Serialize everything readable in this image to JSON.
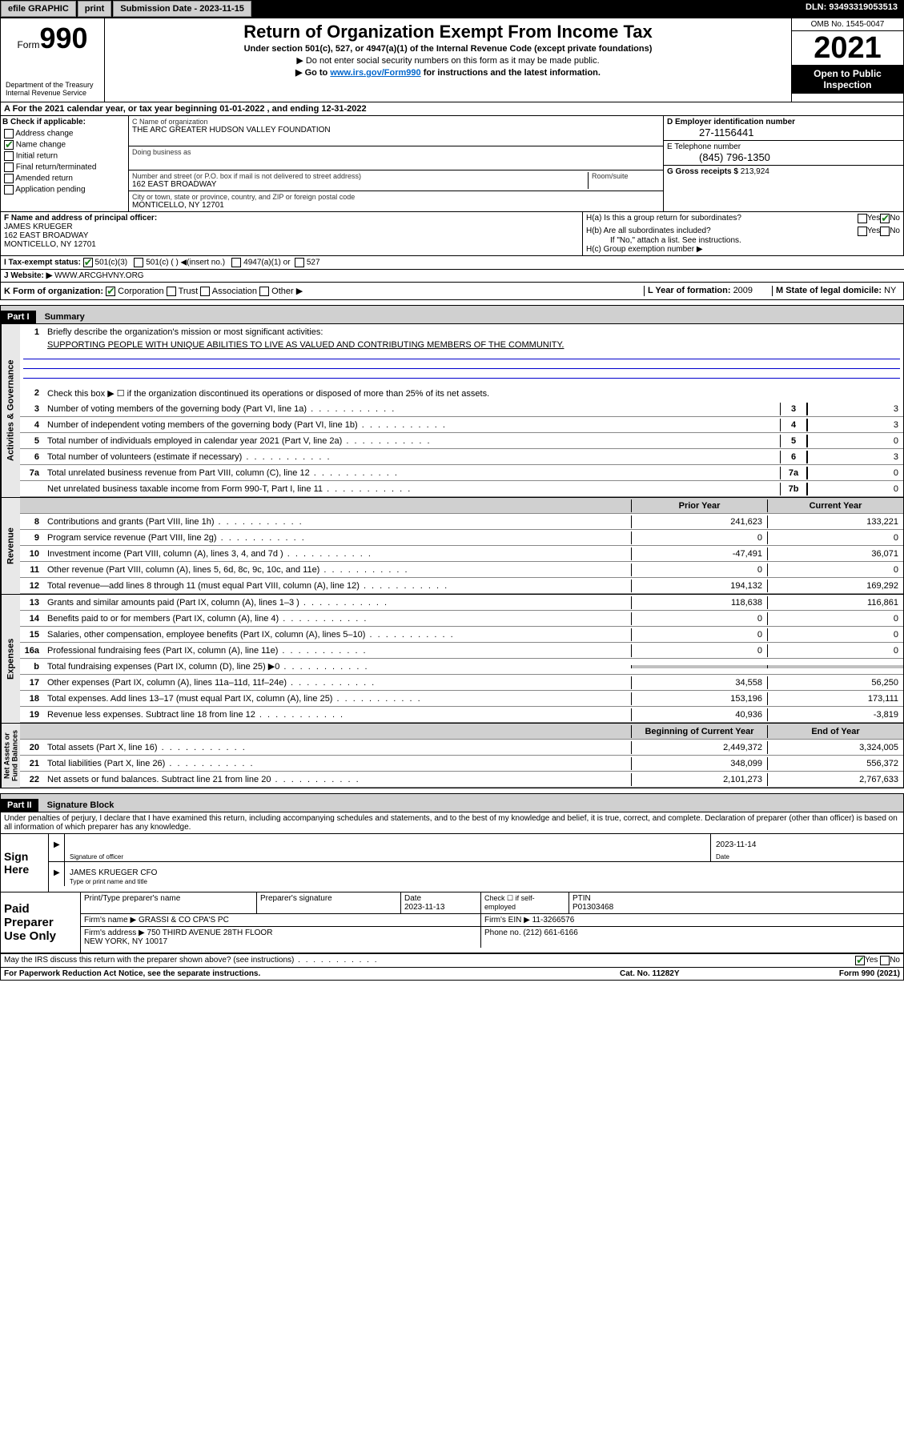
{
  "topbar": {
    "efile": "efile GRAPHIC",
    "print": "print",
    "subdate_label": "Submission Date - 2023-11-15",
    "dln_label": "DLN: 93493319053513"
  },
  "header": {
    "form_prefix": "Form",
    "form_number": "990",
    "dept": "Department of the Treasury\nInternal Revenue Service",
    "title": "Return of Organization Exempt From Income Tax",
    "sub1": "Under section 501(c), 527, or 4947(a)(1) of the Internal Revenue Code (except private foundations)",
    "sub2": "▶ Do not enter social security numbers on this form as it may be made public.",
    "sub3_pre": "▶ Go to ",
    "sub3_link": "www.irs.gov/Form990",
    "sub3_post": " for instructions and the latest information.",
    "omb": "OMB No. 1545-0047",
    "year": "2021",
    "open_public": "Open to Public\nInspection"
  },
  "section_a": {
    "text": "A For the 2021 calendar year, or tax year beginning 01-01-2022    , and ending 12-31-2022"
  },
  "block_b": {
    "hdr": "B Check if applicable:",
    "items": [
      "Address change",
      "Name change",
      "Initial return",
      "Final return/terminated",
      "Amended return",
      "Application pending"
    ],
    "checked_idx": 1
  },
  "block_c": {
    "name_lbl": "C Name of organization",
    "name": "THE ARC GREATER HUDSON VALLEY FOUNDATION",
    "dba_lbl": "Doing business as",
    "dba": "",
    "addr_lbl": "Number and street (or P.O. box if mail is not delivered to street address)",
    "room_lbl": "Room/suite",
    "addr": "162 EAST BROADWAY",
    "city_lbl": "City or town, state or province, country, and ZIP or foreign postal code",
    "city": "MONTICELLO, NY  12701"
  },
  "block_d": {
    "lbl": "D Employer identification number",
    "val": "27-1156441"
  },
  "block_e": {
    "lbl": "E Telephone number",
    "val": "(845) 796-1350"
  },
  "block_g": {
    "lbl": "G Gross receipts $ ",
    "val": "213,924"
  },
  "block_f": {
    "lbl": "F  Name and address of principal officer:",
    "name": "JAMES KRUEGER",
    "addr": "162 EAST BROADWAY\nMONTICELLO, NY  12701"
  },
  "block_h": {
    "a_lbl": "H(a)  Is this a group return for subordinates?",
    "a_yes": "Yes",
    "a_no": "No",
    "b_lbl": "H(b)  Are all subordinates included?",
    "b_note": "If \"No,\" attach a list. See instructions.",
    "c_lbl": "H(c)  Group exemption number ▶"
  },
  "block_i": {
    "lbl": "I   Tax-exempt status:",
    "opts": [
      "501(c)(3)",
      "501(c) (  ) ◀(insert no.)",
      "4947(a)(1) or",
      "527"
    ]
  },
  "block_j": {
    "lbl": "J   Website: ▶",
    "val": "WWW.ARCGHVNY.ORG"
  },
  "block_k": {
    "lbl": "K Form of organization:",
    "opts": [
      "Corporation",
      "Trust",
      "Association",
      "Other ▶"
    ]
  },
  "block_l": {
    "lbl": "L Year of formation: ",
    "val": "2009"
  },
  "block_m": {
    "lbl": "M State of legal domicile: ",
    "val": "NY"
  },
  "part1": {
    "hdr_num": "Part I",
    "hdr_title": "Summary",
    "q1_lbl": "Briefly describe the organization's mission or most significant activities:",
    "q1_mission": "SUPPORTING PEOPLE WITH UNIQUE ABILITIES TO LIVE AS VALUED AND CONTRIBUTING MEMBERS OF THE COMMUNITY.",
    "q2": "Check this box ▶ ☐  if the organization discontinued its operations or disposed of more than 25% of its net assets.",
    "col_prior": "Prior Year",
    "col_current": "Current Year",
    "col_begin": "Beginning of Current Year",
    "col_end": "End of Year",
    "vtabs": [
      "Activities & Governance",
      "Revenue",
      "Expenses",
      "Net Assets or\nFund Balances"
    ],
    "lines_gov": [
      {
        "n": "3",
        "t": "Number of voting members of the governing body (Part VI, line 1a)",
        "box": "3",
        "v": "3"
      },
      {
        "n": "4",
        "t": "Number of independent voting members of the governing body (Part VI, line 1b)",
        "box": "4",
        "v": "3"
      },
      {
        "n": "5",
        "t": "Total number of individuals employed in calendar year 2021 (Part V, line 2a)",
        "box": "5",
        "v": "0"
      },
      {
        "n": "6",
        "t": "Total number of volunteers (estimate if necessary)",
        "box": "6",
        "v": "3"
      },
      {
        "n": "7a",
        "t": "Total unrelated business revenue from Part VIII, column (C), line 12",
        "box": "7a",
        "v": "0"
      },
      {
        "n": "",
        "t": "Net unrelated business taxable income from Form 990-T, Part I, line 11",
        "box": "7b",
        "v": "0"
      }
    ],
    "lines_rev": [
      {
        "n": "8",
        "t": "Contributions and grants (Part VIII, line 1h)",
        "p": "241,623",
        "c": "133,221"
      },
      {
        "n": "9",
        "t": "Program service revenue (Part VIII, line 2g)",
        "p": "0",
        "c": "0"
      },
      {
        "n": "10",
        "t": "Investment income (Part VIII, column (A), lines 3, 4, and 7d )",
        "p": "-47,491",
        "c": "36,071"
      },
      {
        "n": "11",
        "t": "Other revenue (Part VIII, column (A), lines 5, 6d, 8c, 9c, 10c, and 11e)",
        "p": "0",
        "c": "0"
      },
      {
        "n": "12",
        "t": "Total revenue—add lines 8 through 11 (must equal Part VIII, column (A), line 12)",
        "p": "194,132",
        "c": "169,292"
      }
    ],
    "lines_exp": [
      {
        "n": "13",
        "t": "Grants and similar amounts paid (Part IX, column (A), lines 1–3 )",
        "p": "118,638",
        "c": "116,861"
      },
      {
        "n": "14",
        "t": "Benefits paid to or for members (Part IX, column (A), line 4)",
        "p": "0",
        "c": "0"
      },
      {
        "n": "15",
        "t": "Salaries, other compensation, employee benefits (Part IX, column (A), lines 5–10)",
        "p": "0",
        "c": "0"
      },
      {
        "n": "16a",
        "t": "Professional fundraising fees (Part IX, column (A), line 11e)",
        "p": "0",
        "c": "0"
      },
      {
        "n": "b",
        "t": "Total fundraising expenses (Part IX, column (D), line 25) ▶0",
        "p": "",
        "c": "",
        "shade": true
      },
      {
        "n": "17",
        "t": "Other expenses (Part IX, column (A), lines 11a–11d, 11f–24e)",
        "p": "34,558",
        "c": "56,250"
      },
      {
        "n": "18",
        "t": "Total expenses. Add lines 13–17 (must equal Part IX, column (A), line 25)",
        "p": "153,196",
        "c": "173,111"
      },
      {
        "n": "19",
        "t": "Revenue less expenses. Subtract line 18 from line 12",
        "p": "40,936",
        "c": "-3,819"
      }
    ],
    "lines_net": [
      {
        "n": "20",
        "t": "Total assets (Part X, line 16)",
        "p": "2,449,372",
        "c": "3,324,005"
      },
      {
        "n": "21",
        "t": "Total liabilities (Part X, line 26)",
        "p": "348,099",
        "c": "556,372"
      },
      {
        "n": "22",
        "t": "Net assets or fund balances. Subtract line 21 from line 20",
        "p": "2,101,273",
        "c": "2,767,633"
      }
    ]
  },
  "part2": {
    "hdr_num": "Part II",
    "hdr_title": "Signature Block",
    "penalty": "Under penalties of perjury, I declare that I have examined this return, including accompanying schedules and statements, and to the best of my knowledge and belief, it is true, correct, and complete. Declaration of preparer (other than officer) is based on all information of which preparer has any knowledge.",
    "sign_here": "Sign\nHere",
    "sig_officer_lbl": "Signature of officer",
    "sig_date": "2023-11-14",
    "sig_date_lbl": "Date",
    "name_title": "JAMES KRUEGER CFO",
    "name_title_lbl": "Type or print name and title"
  },
  "preparer": {
    "hdr": "Paid\nPreparer\nUse Only",
    "name_lbl": "Print/Type preparer's name",
    "sig_lbl": "Preparer's signature",
    "date_lbl": "Date",
    "date": "2023-11-13",
    "check_lbl": "Check ☐ if self-employed",
    "ptin_lbl": "PTIN",
    "ptin": "P01303468",
    "firm_name_lbl": "Firm's name    ▶",
    "firm_name": "GRASSI & CO CPA'S PC",
    "firm_ein_lbl": "Firm's EIN ▶",
    "firm_ein": "11-3266576",
    "firm_addr_lbl": "Firm's address ▶",
    "firm_addr": "750 THIRD AVENUE 28TH FLOOR\nNEW YORK, NY  10017",
    "phone_lbl": "Phone no.",
    "phone": "(212) 661-6166"
  },
  "discuss": {
    "q": "May the IRS discuss this return with the preparer shown above? (see instructions)",
    "yes": "Yes",
    "no": "No"
  },
  "footer": {
    "left": "For Paperwork Reduction Act Notice, see the separate instructions.",
    "mid": "Cat. No. 11282Y",
    "right": "Form 990 (2021)"
  },
  "colors": {
    "link": "#0066cc",
    "check_green": "#1a7f1a",
    "shade": "#c0c0c0",
    "bar": "#d0d0d0"
  }
}
